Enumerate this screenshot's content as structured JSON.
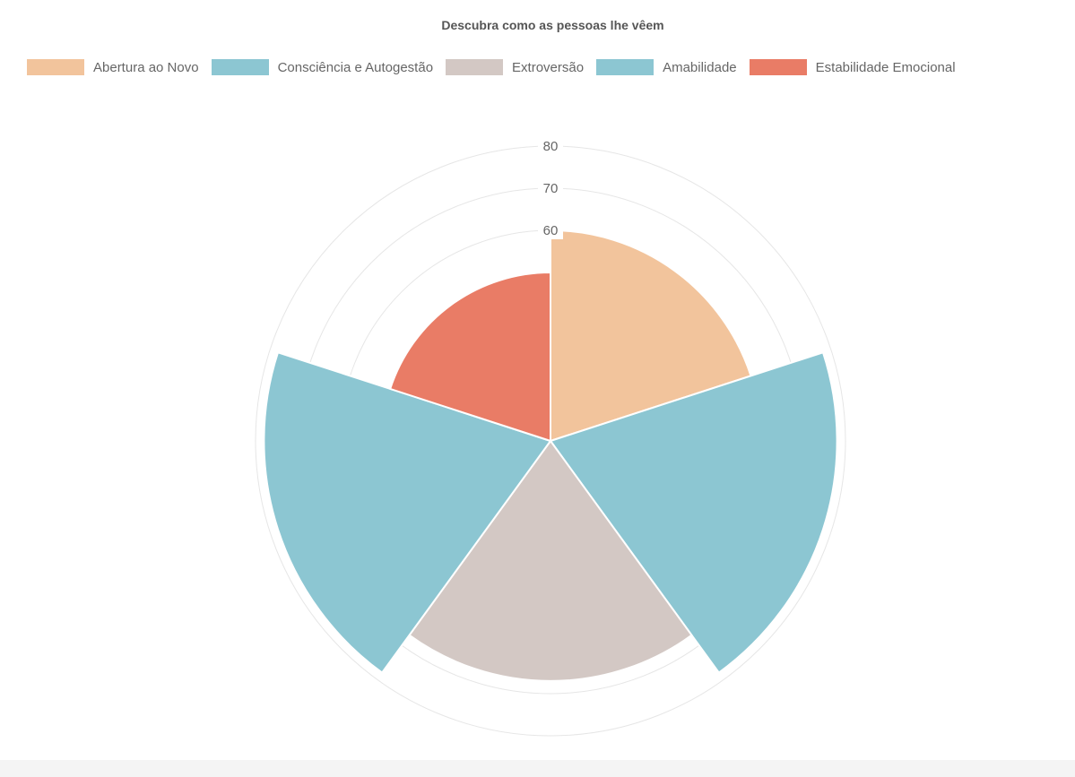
{
  "chart_data": {
    "type": "polarArea",
    "title": "Descubra como as pessoas lhe vêem",
    "categories": [
      "Abertura ao Novo",
      "Consciência e Autogestão",
      "Extroversão",
      "Amabilidade",
      "Estabilidade Emocional"
    ],
    "values": [
      60,
      78,
      67,
      78,
      50
    ],
    "colors": [
      "#f2c49c",
      "#8cc6d2",
      "#d3c8c4",
      "#8cc6d2",
      "#e97c66"
    ],
    "radial_axis": {
      "min": 10,
      "max": 80,
      "step": 10,
      "tick_labels": [
        "60",
        "70",
        "80"
      ],
      "grid": true
    },
    "legend_position": "top"
  }
}
